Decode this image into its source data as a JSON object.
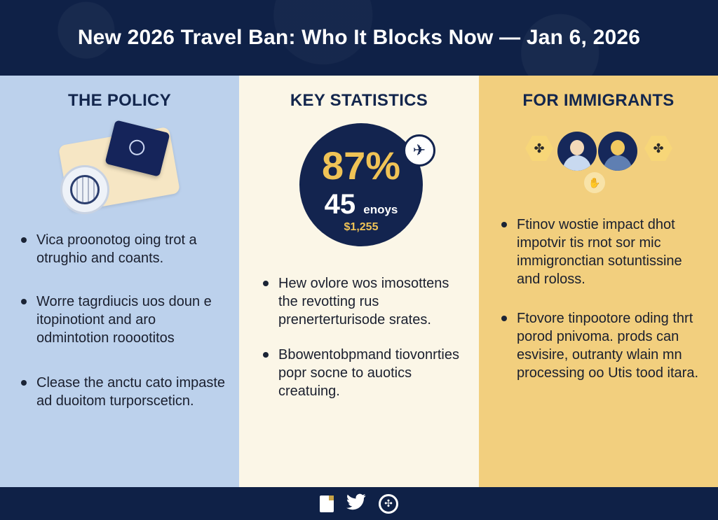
{
  "header": {
    "title": "New 2026 Travel Ban: Who It Blocks Now — Jan 6, 2026"
  },
  "policy": {
    "title": "THE POLICY",
    "bullets": [
      "Vica proonotog oing trot a otrughio and coants.",
      "Worre tagrdiucis uos doun e itopinotiont and aro odmintotion rooootitos",
      "Clease the anctu cato impaste ad duoitom turporsceticn."
    ]
  },
  "stats": {
    "title": "KEY STATISTICS",
    "big_value": "87%",
    "mid_value": "45",
    "mid_unit": "enoys",
    "small_value": "$1,255",
    "bullets": [
      "Hew ovlore wos imosottens the revotting rus prenerterturisode srates.",
      "Bbowentobpmand tiovonrties popr socne to auotics creatuing."
    ]
  },
  "immigrants": {
    "title": "FOR IMMIGRANTS",
    "bullets": [
      "Ftinov wostie impact dhot impotvir tis rnot sor mic immigronctian sotuntissine and roloss.",
      "Ftovore tinpootore oding thrt porod pnivoma. prods can esvisire, outranty wlain mn processing oo Utis tood itara."
    ]
  },
  "footer": {
    "icons": [
      "document-icon",
      "twitter-icon",
      "share-icon"
    ]
  },
  "colors": {
    "navy": "#0f2147",
    "policy_bg": "#bcd1ec",
    "stats_bg": "#fbf6e7",
    "immigrants_bg": "#f2cf7e",
    "accent_gold": "#f0c356"
  }
}
